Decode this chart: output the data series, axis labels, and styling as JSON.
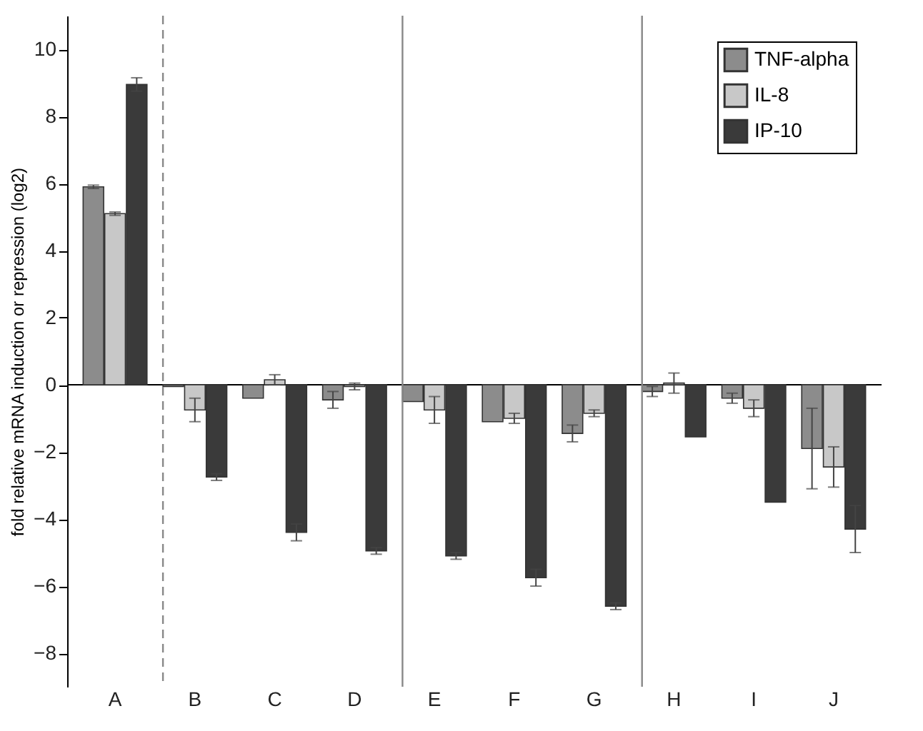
{
  "chart_data": {
    "type": "bar",
    "ylabel": "fold relative mRNA induction or repression (log2)",
    "categories": [
      "A",
      "B",
      "C",
      "D",
      "E",
      "F",
      "G",
      "H",
      "I",
      "J"
    ],
    "series": [
      {
        "name": "TNF-alpha",
        "color": "#8c8c8c",
        "values": [
          5.9,
          -0.05,
          -0.4,
          -0.45,
          -0.5,
          -1.1,
          -1.45,
          -0.2,
          -0.4,
          -1.9
        ],
        "errors": [
          0.05,
          null,
          null,
          0.25,
          null,
          null,
          0.25,
          0.15,
          0.15,
          1.2
        ]
      },
      {
        "name": "IL-8",
        "color": "#c8c8c8",
        "values": [
          5.1,
          -0.75,
          0.15,
          -0.05,
          -0.75,
          -1.0,
          -0.85,
          0.05,
          -0.7,
          -2.45
        ],
        "errors": [
          0.05,
          0.35,
          0.15,
          0.1,
          0.4,
          0.15,
          0.1,
          0.3,
          0.25,
          0.6
        ]
      },
      {
        "name": "IP-10",
        "color": "#3a3a3a",
        "values": [
          8.95,
          -2.75,
          -4.4,
          -4.95,
          -5.1,
          -5.75,
          -6.6,
          -1.55,
          -3.5,
          -4.3
        ],
        "errors": [
          0.2,
          0.1,
          0.25,
          0.1,
          0.1,
          0.25,
          0.1,
          null,
          null,
          0.7
        ]
      }
    ],
    "ylim": [
      -9,
      11
    ],
    "yticks": [
      -8,
      -6,
      -4,
      -2,
      0,
      2,
      4,
      6,
      8,
      10
    ],
    "legend": "top right",
    "ref_lines": [
      {
        "axis": "x",
        "value": "B",
        "line_style": "dashed",
        "color": "#888888"
      },
      {
        "axis": "x",
        "value": "E",
        "line_style": "solid",
        "color": "#888888"
      },
      {
        "axis": "x",
        "value": "H",
        "line_style": "solid",
        "color": "#888888"
      }
    ]
  }
}
